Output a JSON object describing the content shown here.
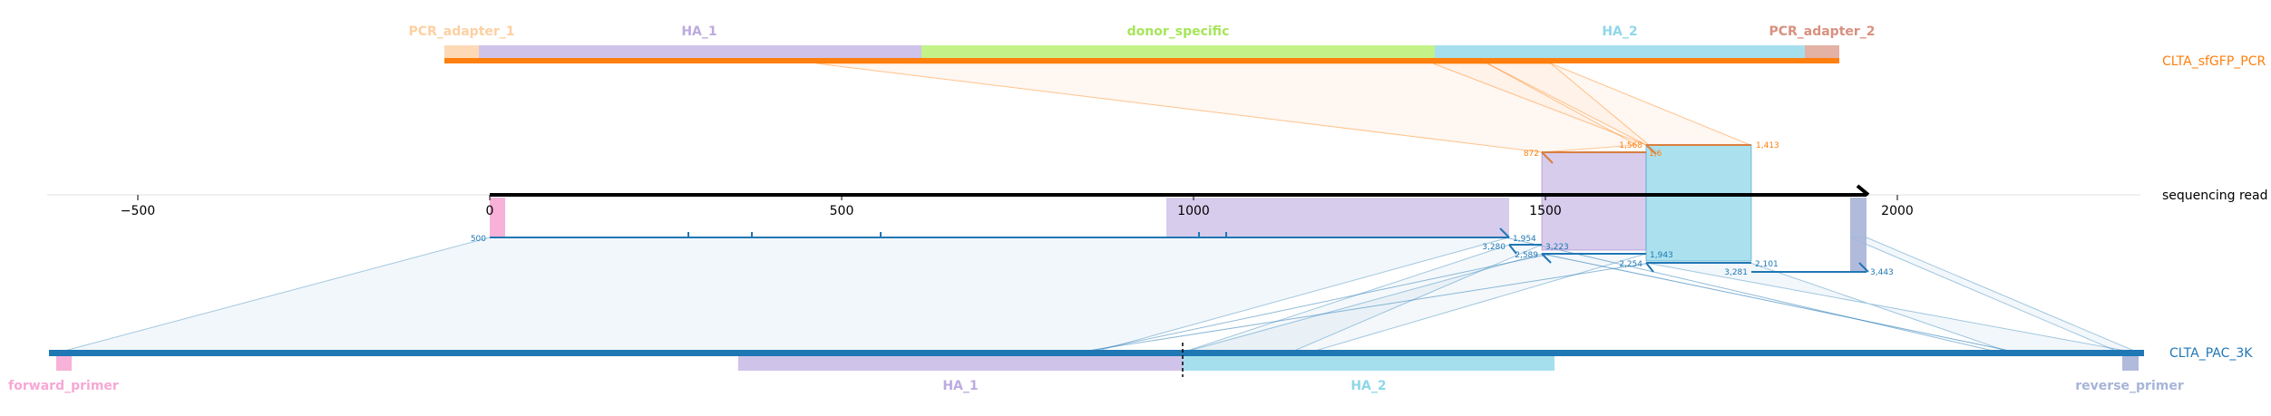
{
  "reference_top": {
    "name": "CLTA_sfGFP_PCR",
    "color": "#ff7f0e",
    "features": [
      {
        "label": "PCR_adapter_1",
        "color": "#fdd0a2"
      },
      {
        "label": "HA_1",
        "color": "#bcaae0"
      },
      {
        "label": "donor_specific",
        "color": "#b5ef6b"
      },
      {
        "label": "HA_2",
        "color": "#8fd7e8"
      },
      {
        "label": "PCR_adapter_2",
        "color": "#d9907f"
      }
    ]
  },
  "read": {
    "name": "sequencing read",
    "axis_ticks": [
      "−500",
      "0",
      "500",
      "1000",
      "1500",
      "2000"
    ]
  },
  "top_alignments": {
    "small_labels": [
      "872",
      "1,568",
      "1,6",
      "1,413"
    ]
  },
  "bottom_alignments": {
    "small_labels": [
      "500",
      "1,954",
      "3,280",
      "3,223",
      "2,589",
      "2,254",
      "1,943",
      "3,281",
      "2,101",
      "3,443"
    ]
  },
  "reference_bottom": {
    "name": "CLTA_PAC_3K",
    "color": "#1f77b4",
    "features": [
      {
        "label": "forward_primer",
        "color": "#f7a8d4"
      },
      {
        "label": "HA_1",
        "color": "#bcaae0"
      },
      {
        "label": "HA_2",
        "color": "#8fd7e8"
      },
      {
        "label": "reverse_primer",
        "color": "#a7b4d8"
      }
    ]
  }
}
